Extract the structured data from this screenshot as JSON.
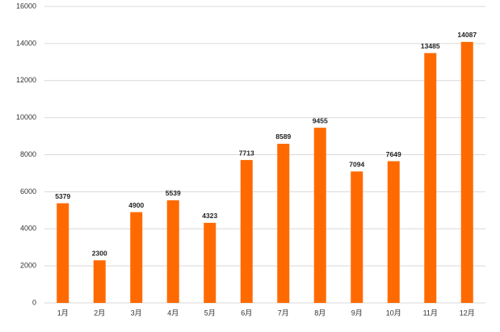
{
  "chart_data": {
    "type": "bar",
    "categories": [
      "1月",
      "2月",
      "3月",
      "4月",
      "5月",
      "6月",
      "7月",
      "8月",
      "9月",
      "10月",
      "11月",
      "12月"
    ],
    "values": [
      5379,
      2300,
      4900,
      5539,
      4323,
      7713,
      8589,
      9455,
      7094,
      7649,
      13485,
      14087
    ],
    "color": "#ff6a00",
    "ylim": [
      0,
      16000
    ],
    "yticks": [
      0,
      2000,
      4000,
      6000,
      8000,
      10000,
      12000,
      14000,
      16000
    ],
    "grid": true
  }
}
